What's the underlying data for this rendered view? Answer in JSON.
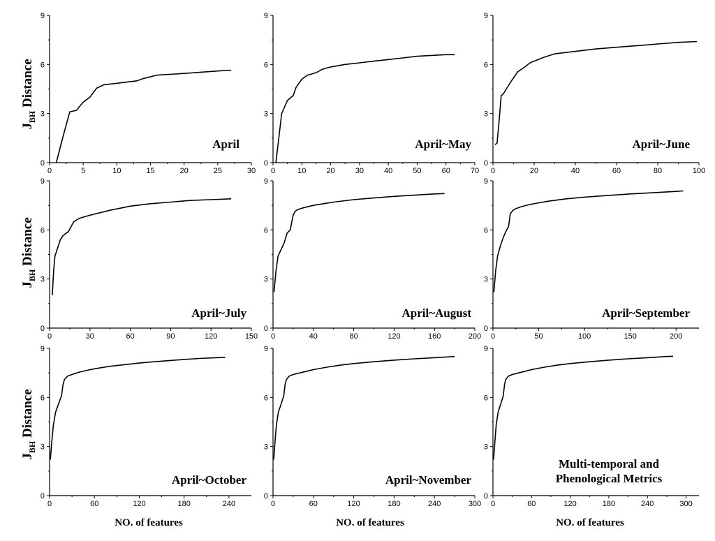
{
  "figure": {
    "y_label_main": "J",
    "y_label_sub": "BH",
    "y_label_rest": " Distance",
    "x_label": "NO. of features"
  },
  "chart_data": [
    {
      "type": "line",
      "label": "April",
      "xlim": [
        0,
        30
      ],
      "ylim": [
        0,
        9
      ],
      "xticks": [
        0,
        5,
        10,
        15,
        20,
        25,
        30
      ],
      "yticks": [
        0,
        3,
        6,
        9
      ],
      "x": [
        1,
        2,
        3,
        4,
        5,
        6,
        7,
        8,
        10,
        13,
        14,
        16,
        20,
        25,
        27
      ],
      "y": [
        0,
        1.6,
        3.1,
        3.2,
        3.7,
        4.0,
        4.55,
        4.75,
        4.85,
        5.0,
        5.15,
        5.35,
        5.45,
        5.6,
        5.65
      ]
    },
    {
      "type": "line",
      "label": "April~May",
      "xlim": [
        0,
        70
      ],
      "ylim": [
        0,
        9
      ],
      "xticks": [
        0,
        10,
        20,
        30,
        40,
        50,
        60,
        70
      ],
      "yticks": [
        0,
        3,
        6,
        9
      ],
      "x": [
        1,
        2,
        3,
        5,
        7,
        8,
        10,
        12,
        15,
        17,
        20,
        25,
        30,
        35,
        40,
        45,
        50,
        55,
        60,
        63
      ],
      "y": [
        0,
        1.5,
        3.0,
        3.8,
        4.1,
        4.6,
        5.1,
        5.35,
        5.5,
        5.7,
        5.85,
        6.0,
        6.1,
        6.2,
        6.3,
        6.4,
        6.5,
        6.55,
        6.6,
        6.6
      ]
    },
    {
      "type": "line",
      "label": "April~June",
      "xlim": [
        0,
        100
      ],
      "ylim": [
        0,
        9
      ],
      "xticks": [
        0,
        20,
        40,
        60,
        80,
        100
      ],
      "yticks": [
        0,
        3,
        6,
        9
      ],
      "x": [
        1,
        2,
        3,
        4,
        5,
        7,
        9,
        12,
        15,
        18,
        20,
        25,
        30,
        40,
        50,
        60,
        70,
        80,
        90,
        99
      ],
      "y": [
        1.1,
        1.2,
        2.6,
        4.1,
        4.2,
        4.6,
        5.0,
        5.55,
        5.8,
        6.1,
        6.2,
        6.45,
        6.65,
        6.8,
        6.95,
        7.05,
        7.15,
        7.25,
        7.35,
        7.4
      ]
    },
    {
      "type": "line",
      "label": "April~July",
      "xlim": [
        0,
        150
      ],
      "ylim": [
        0,
        9
      ],
      "xticks": [
        0,
        30,
        60,
        90,
        120,
        150
      ],
      "yticks": [
        0,
        3,
        6,
        9
      ],
      "x": [
        2,
        3,
        4,
        6,
        8,
        10,
        14,
        16,
        18,
        22,
        28,
        35,
        45,
        60,
        75,
        90,
        105,
        120,
        135
      ],
      "y": [
        2.0,
        3.5,
        4.4,
        4.9,
        5.4,
        5.65,
        5.9,
        6.2,
        6.5,
        6.7,
        6.85,
        7.0,
        7.2,
        7.45,
        7.6,
        7.7,
        7.8,
        7.85,
        7.9
      ]
    },
    {
      "type": "line",
      "label": "April~August",
      "xlim": [
        0,
        200
      ],
      "ylim": [
        0,
        9
      ],
      "xticks": [
        0,
        40,
        80,
        120,
        160,
        200
      ],
      "yticks": [
        0,
        3,
        6,
        9
      ],
      "x": [
        1,
        3,
        5,
        8,
        11,
        14,
        17,
        20,
        22,
        25,
        30,
        40,
        50,
        60,
        80,
        100,
        120,
        140,
        160,
        170
      ],
      "y": [
        2.2,
        3.5,
        4.4,
        4.8,
        5.2,
        5.8,
        6.0,
        6.9,
        7.15,
        7.25,
        7.35,
        7.5,
        7.6,
        7.7,
        7.85,
        7.95,
        8.05,
        8.12,
        8.2,
        8.22
      ]
    },
    {
      "type": "line",
      "label": "April~September",
      "xlim": [
        0,
        225
      ],
      "ylim": [
        0,
        9
      ],
      "xticks": [
        0,
        50,
        100,
        150,
        200
      ],
      "yticks": [
        0,
        3,
        6,
        9
      ],
      "x": [
        1,
        3,
        5,
        8,
        11,
        14,
        17,
        19,
        22,
        25,
        30,
        40,
        50,
        60,
        80,
        100,
        125,
        150,
        175,
        200,
        208
      ],
      "y": [
        2.2,
        3.5,
        4.4,
        5.0,
        5.5,
        5.9,
        6.2,
        7.0,
        7.2,
        7.3,
        7.4,
        7.55,
        7.65,
        7.75,
        7.9,
        8.0,
        8.1,
        8.2,
        8.27,
        8.35,
        8.38
      ]
    },
    {
      "type": "line",
      "label": "April~October",
      "xlim": [
        0,
        270
      ],
      "ylim": [
        0,
        9
      ],
      "xticks": [
        0,
        60,
        120,
        180,
        240
      ],
      "yticks": [
        0,
        3,
        6,
        9
      ],
      "x": [
        1,
        3,
        5,
        8,
        12,
        16,
        18,
        20,
        24,
        30,
        40,
        50,
        60,
        80,
        100,
        120,
        140,
        160,
        180,
        200,
        220,
        235
      ],
      "y": [
        2.2,
        3.3,
        4.3,
        5.1,
        5.6,
        6.1,
        6.8,
        7.1,
        7.3,
        7.4,
        7.55,
        7.65,
        7.75,
        7.9,
        8.0,
        8.1,
        8.18,
        8.25,
        8.32,
        8.38,
        8.42,
        8.45
      ]
    },
    {
      "type": "line",
      "label": "April~November",
      "xlim": [
        0,
        300
      ],
      "ylim": [
        0,
        9
      ],
      "xticks": [
        0,
        60,
        120,
        180,
        240,
        300
      ],
      "yticks": [
        0,
        3,
        6,
        9
      ],
      "x": [
        1,
        3,
        5,
        8,
        12,
        16,
        18,
        20,
        24,
        30,
        40,
        50,
        60,
        80,
        100,
        120,
        150,
        180,
        210,
        240,
        270
      ],
      "y": [
        2.2,
        3.3,
        4.3,
        5.1,
        5.6,
        6.1,
        6.8,
        7.1,
        7.3,
        7.4,
        7.5,
        7.6,
        7.7,
        7.85,
        7.97,
        8.07,
        8.18,
        8.28,
        8.36,
        8.43,
        8.5
      ]
    },
    {
      "type": "line",
      "label": "Multi-temporal and\nPhenological Metrics",
      "xlim": [
        0,
        320
      ],
      "ylim": [
        0,
        9
      ],
      "xticks": [
        0,
        60,
        120,
        180,
        240,
        300
      ],
      "yticks": [
        0,
        3,
        6,
        9
      ],
      "x": [
        1,
        3,
        5,
        8,
        12,
        16,
        18,
        20,
        24,
        30,
        40,
        50,
        60,
        80,
        100,
        120,
        150,
        180,
        210,
        240,
        270,
        280
      ],
      "y": [
        2.2,
        3.3,
        4.3,
        5.1,
        5.6,
        6.1,
        6.8,
        7.1,
        7.3,
        7.4,
        7.5,
        7.6,
        7.7,
        7.85,
        7.97,
        8.07,
        8.18,
        8.28,
        8.36,
        8.43,
        8.5,
        8.52
      ]
    }
  ]
}
